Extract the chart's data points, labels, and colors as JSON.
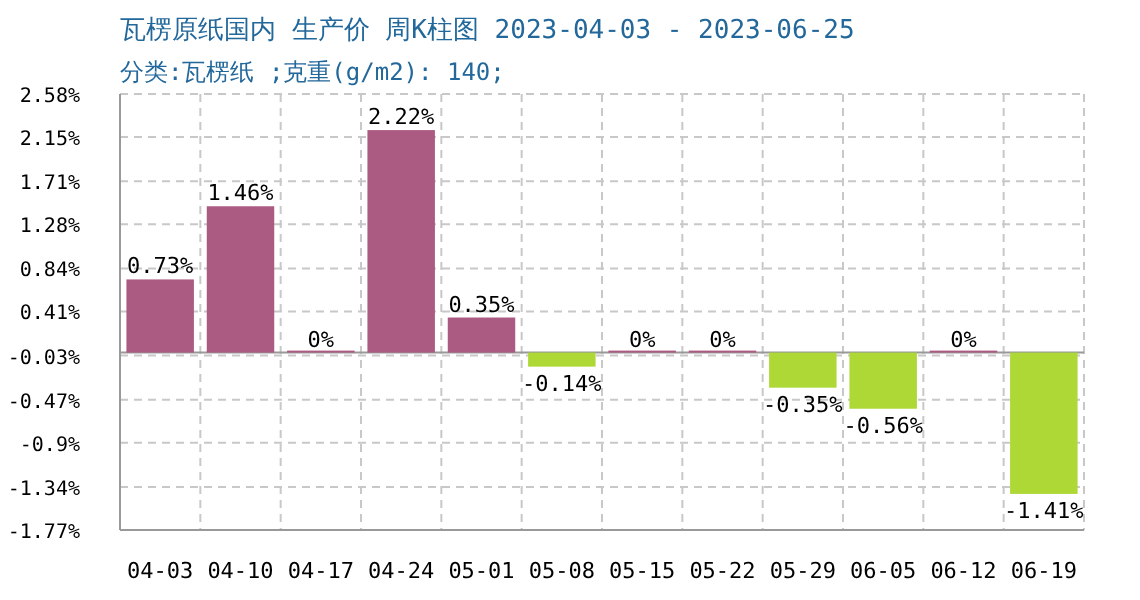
{
  "chart_data": {
    "type": "bar",
    "title": "瓦楞原纸国内 生产价 周K柱图 2023-04-03 - 2023-06-25",
    "subtitle": "分类:瓦楞纸 ;克重(g/m2): 140;",
    "categories": [
      "04-03",
      "04-10",
      "04-17",
      "04-24",
      "05-01",
      "05-08",
      "05-15",
      "05-22",
      "05-29",
      "06-05",
      "06-12",
      "06-19"
    ],
    "values": [
      0.73,
      1.46,
      0,
      2.22,
      0.35,
      -0.14,
      0,
      0,
      -0.35,
      -0.56,
      0,
      -1.41
    ],
    "colors": [
      "#ab5a82",
      "#ab5a82",
      "#ab5a82",
      "#ab5a82",
      "#ab5a82",
      "#add836",
      "#ab5a82",
      "#ab5a82",
      "#add836",
      "#add836",
      "#ab5a82",
      "#add836"
    ],
    "value_labels": [
      "0.73%",
      "1.46%",
      "0%",
      "2.22%",
      "0.35%",
      "-0.14%",
      "0%",
      "0%",
      "-0.35%",
      "-0.56%",
      "0%",
      "-1.41%"
    ],
    "ylim": [
      -1.77,
      2.58
    ],
    "yticks": [
      {
        "value": 2.58,
        "label": "2.58%"
      },
      {
        "value": 2.15,
        "label": "2.15%"
      },
      {
        "value": 1.71,
        "label": "1.71%"
      },
      {
        "value": 1.28,
        "label": "1.28%"
      },
      {
        "value": 0.84,
        "label": "0.84%"
      },
      {
        "value": 0.41,
        "label": "0.41%"
      },
      {
        "value": -0.03,
        "label": "-0.03%"
      },
      {
        "value": -0.47,
        "label": "-0.47%"
      },
      {
        "value": -0.9,
        "label": "-0.9%"
      },
      {
        "value": -1.34,
        "label": "-1.34%"
      },
      {
        "value": -1.77,
        "label": "-1.77%"
      }
    ],
    "grid": true
  }
}
